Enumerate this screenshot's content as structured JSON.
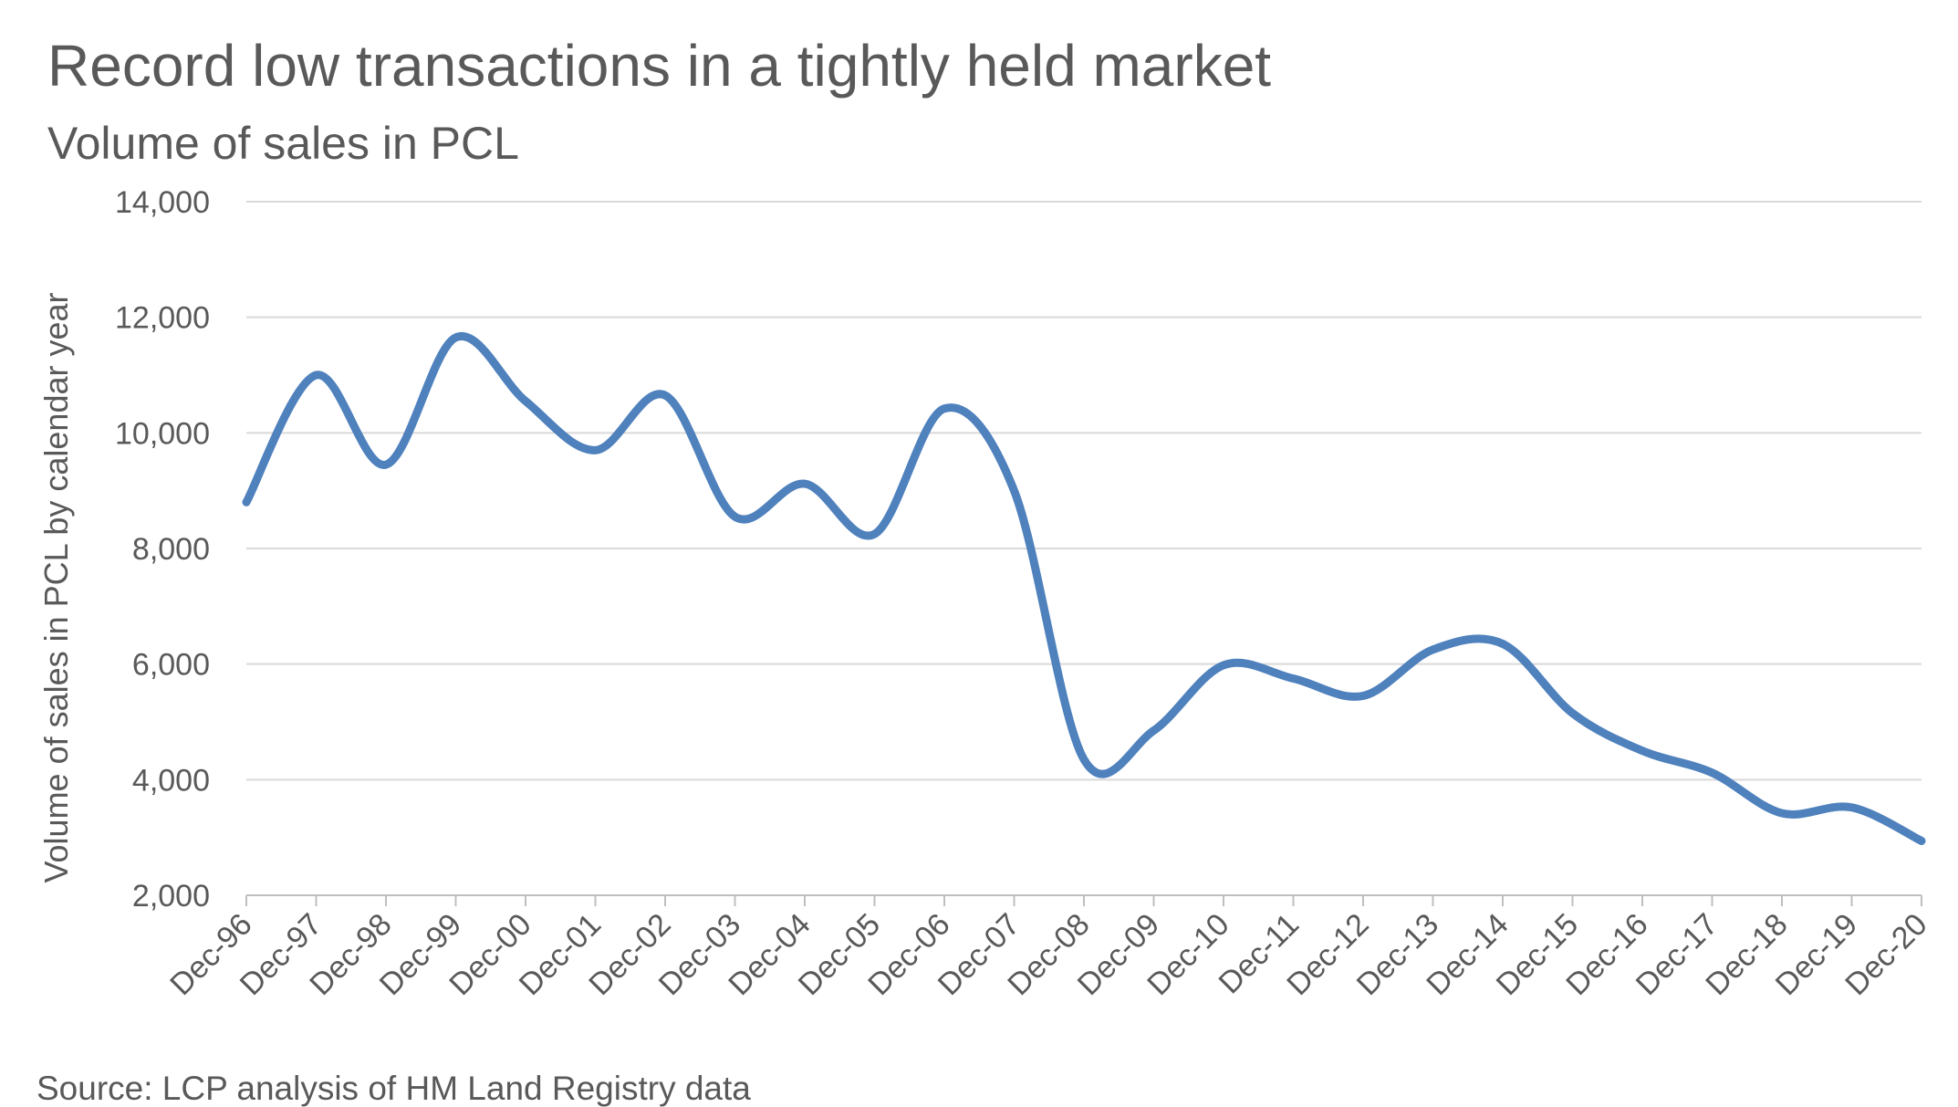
{
  "chart_data": {
    "type": "line",
    "title": "Record low transactions in a tightly held market",
    "subtitle": "Volume of sales in PCL",
    "ylabel": "Volume of sales in PCL by calendar year",
    "xlabel": "",
    "source": "Source: LCP analysis of HM Land Registry data",
    "ylim": [
      2000,
      14000
    ],
    "y_ticks": [
      2000,
      4000,
      6000,
      8000,
      10000,
      12000,
      14000
    ],
    "y_tick_labels": [
      "2,000",
      "4,000",
      "6,000",
      "8,000",
      "10,000",
      "12,000",
      "14,000"
    ],
    "grid": true,
    "line_color": "#4F81BD",
    "categories": [
      "Dec-96",
      "Dec-97",
      "Dec-98",
      "Dec-99",
      "Dec-00",
      "Dec-01",
      "Dec-02",
      "Dec-03",
      "Dec-04",
      "Dec-05",
      "Dec-06",
      "Dec-07",
      "Dec-08",
      "Dec-09",
      "Dec-10",
      "Dec-11",
      "Dec-12",
      "Dec-13",
      "Dec-14",
      "Dec-15",
      "Dec-16",
      "Dec-17",
      "Dec-18",
      "Dec-19",
      "Dec-20"
    ],
    "series": [
      {
        "name": "Volume of sales in PCL",
        "values": [
          8800,
          11000,
          9450,
          11650,
          10550,
          9700,
          10650,
          8550,
          9120,
          8250,
          10420,
          9000,
          4350,
          4850,
          5980,
          5750,
          5450,
          6250,
          6350,
          5150,
          4500,
          4120,
          3420,
          3520,
          2940
        ]
      }
    ]
  }
}
